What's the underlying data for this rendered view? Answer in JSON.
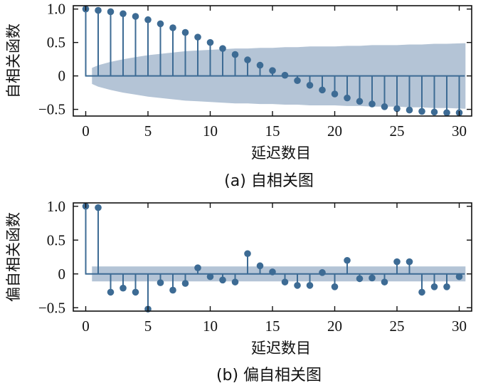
{
  "colors": {
    "stem": "#3d6b94",
    "marker": "#3d6b94",
    "band": "#b4c4d6",
    "axis": "#111111"
  },
  "chart_data": [
    {
      "type": "stem",
      "id": "acf",
      "caption": "(a) 自相关图",
      "xlabel": "延迟数目",
      "ylabel": "自相关函数",
      "xlim": [
        -1,
        31
      ],
      "ylim": [
        -0.6,
        1.05
      ],
      "xticks": [
        0,
        5,
        10,
        15,
        20,
        25,
        30
      ],
      "xtick_labels": [
        "0",
        "5",
        "10",
        "15",
        "20",
        "25",
        "30"
      ],
      "yticks": [
        1.0,
        0.5,
        0,
        -0.5
      ],
      "ytick_labels": [
        "1.0",
        "0.5",
        "0",
        "−0.5"
      ],
      "x": [
        0,
        1,
        2,
        3,
        4,
        5,
        6,
        7,
        8,
        9,
        10,
        11,
        12,
        13,
        14,
        15,
        16,
        17,
        18,
        19,
        20,
        21,
        22,
        23,
        24,
        25,
        26,
        27,
        28,
        29,
        30
      ],
      "values": [
        1.0,
        0.98,
        0.96,
        0.93,
        0.89,
        0.84,
        0.78,
        0.72,
        0.65,
        0.58,
        0.5,
        0.41,
        0.32,
        0.24,
        0.16,
        0.08,
        0.01,
        -0.07,
        -0.14,
        -0.21,
        -0.27,
        -0.33,
        -0.38,
        -0.42,
        -0.46,
        -0.49,
        -0.51,
        -0.53,
        -0.54,
        -0.55,
        -0.55
      ],
      "confidence_band": {
        "x": [
          0.5,
          1,
          2,
          3,
          4,
          5,
          6,
          7,
          8,
          9,
          10,
          11,
          12,
          13,
          14,
          15,
          16,
          17,
          18,
          19,
          20,
          21,
          22,
          23,
          24,
          25,
          26,
          27,
          28,
          29,
          30.5
        ],
        "upper": [
          0.12,
          0.16,
          0.21,
          0.25,
          0.28,
          0.31,
          0.33,
          0.35,
          0.37,
          0.38,
          0.39,
          0.4,
          0.41,
          0.41,
          0.42,
          0.42,
          0.43,
          0.43,
          0.44,
          0.44,
          0.44,
          0.45,
          0.45,
          0.46,
          0.46,
          0.46,
          0.47,
          0.47,
          0.48,
          0.48,
          0.49
        ]
      }
    },
    {
      "type": "stem",
      "id": "pacf",
      "caption": "(b) 偏自相关图",
      "xlabel": "延迟数目",
      "ylabel": "偏自相关函数",
      "xlim": [
        -1,
        31
      ],
      "ylim": [
        -0.55,
        1.05
      ],
      "xticks": [
        0,
        5,
        10,
        15,
        20,
        25,
        30
      ],
      "xtick_labels": [
        "0",
        "5",
        "10",
        "15",
        "20",
        "25",
        "30"
      ],
      "yticks": [
        1.0,
        0.5,
        0,
        -0.5
      ],
      "ytick_labels": [
        "1.0",
        "0.5",
        "0",
        "−0.5"
      ],
      "x": [
        0,
        1,
        2,
        3,
        4,
        5,
        6,
        7,
        8,
        9,
        10,
        11,
        12,
        13,
        14,
        15,
        16,
        17,
        18,
        19,
        20,
        21,
        22,
        23,
        24,
        25,
        26,
        27,
        28,
        29,
        30
      ],
      "values": [
        1.0,
        0.98,
        -0.27,
        -0.21,
        -0.27,
        -0.52,
        -0.13,
        -0.24,
        -0.14,
        0.09,
        -0.04,
        -0.09,
        -0.12,
        0.3,
        0.12,
        0.03,
        -0.12,
        -0.17,
        -0.17,
        0.02,
        -0.19,
        0.2,
        -0.07,
        -0.06,
        -0.12,
        0.18,
        0.18,
        -0.27,
        -0.19,
        -0.19,
        -0.04
      ],
      "confidence_band": {
        "x": [
          0.5,
          30.5
        ],
        "upper": [
          0.11,
          0.11
        ]
      }
    }
  ]
}
